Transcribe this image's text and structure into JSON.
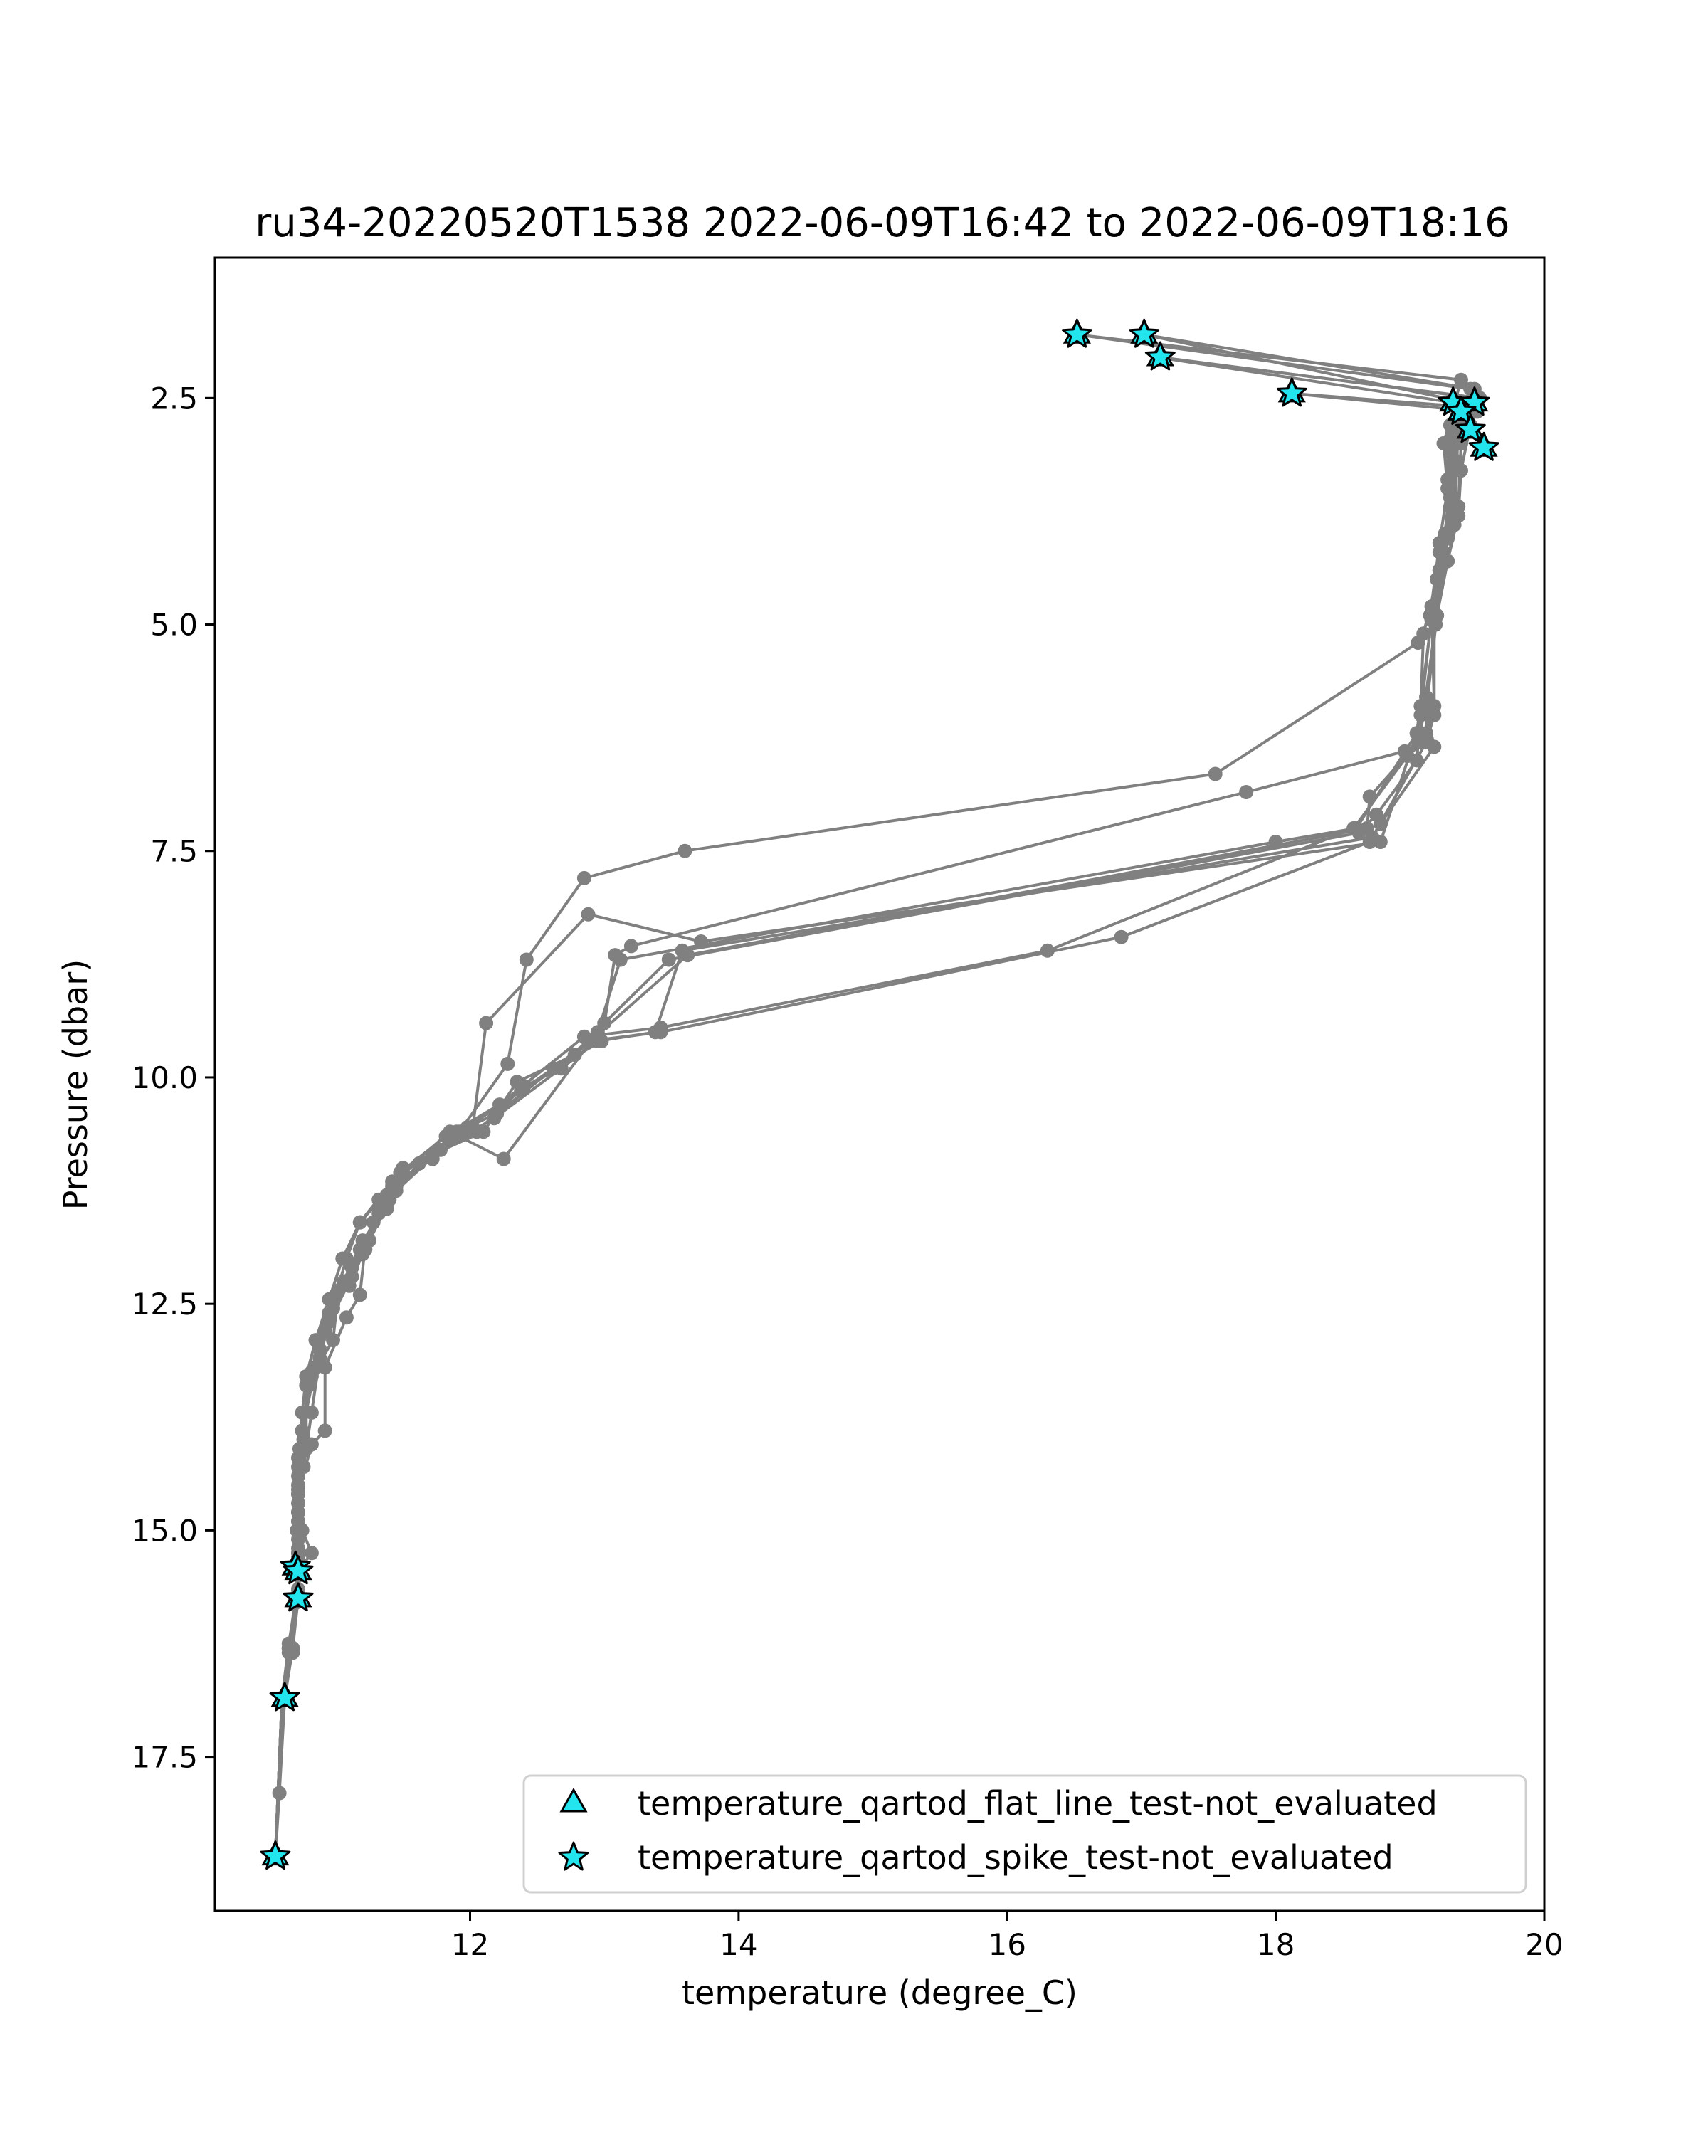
{
  "chart_data": {
    "type": "line",
    "title": "ru34-20220520T1538 2022-06-09T16:42 to 2022-06-09T18:16",
    "xlabel": "temperature (degree_C)",
    "ylabel": "Pressure (dbar)",
    "xlim": [
      10.1,
      20.0
    ],
    "ylim": [
      19.2,
      0.95
    ],
    "y_inverted": true,
    "x_ticks": [
      12,
      14,
      16,
      18,
      20
    ],
    "x_tick_labels": [
      "12",
      "14",
      "16",
      "18",
      "20"
    ],
    "y_ticks": [
      2.5,
      5.0,
      7.5,
      10.0,
      12.5,
      15.0,
      17.5
    ],
    "y_tick_labels": [
      "2.5",
      "5.0",
      "7.5",
      "10.0",
      "12.5",
      "15.0",
      "17.5"
    ],
    "grid": false,
    "line_color": "#808080",
    "marker_color": "#808080",
    "flag_color": "#22e5ee",
    "flag_edge_color": "#000000",
    "series": [
      {
        "points": [
          [
            16.52,
            1.8
          ],
          [
            19.38,
            2.3
          ],
          [
            19.25,
            3.0
          ],
          [
            19.28,
            3.5
          ],
          [
            19.22,
            4.1
          ],
          [
            19.15,
            4.9
          ],
          [
            19.06,
            5.2
          ],
          [
            17.55,
            6.65
          ],
          [
            13.6,
            7.5
          ],
          [
            12.85,
            7.8
          ],
          [
            12.42,
            8.7
          ],
          [
            12.28,
            9.85
          ],
          [
            11.92,
            10.6
          ],
          [
            11.42,
            11.15
          ],
          [
            11.18,
            11.6
          ],
          [
            11.08,
            12.0
          ],
          [
            10.98,
            12.5
          ],
          [
            10.82,
            13.3
          ],
          [
            10.73,
            14.1
          ],
          [
            10.72,
            14.55
          ],
          [
            10.72,
            14.9
          ],
          [
            10.7,
            15.4
          ],
          [
            10.72,
            15.75
          ],
          [
            10.68,
            16.3
          ],
          [
            10.62,
            16.85
          ],
          [
            10.58,
            17.9
          ],
          [
            10.55,
            18.6
          ]
        ]
      },
      {
        "points": [
          [
            17.02,
            1.8
          ],
          [
            19.48,
            2.4
          ],
          [
            19.36,
            2.6
          ],
          [
            19.35,
            3.2
          ],
          [
            19.33,
            3.9
          ],
          [
            19.25,
            4.2
          ],
          [
            19.19,
            5.0
          ],
          [
            19.07,
            6.3
          ],
          [
            18.96,
            6.4
          ],
          [
            17.78,
            6.85
          ],
          [
            13.2,
            8.55
          ],
          [
            13.08,
            8.65
          ],
          [
            12.98,
            9.6
          ],
          [
            12.62,
            9.9
          ],
          [
            12.38,
            10.15
          ],
          [
            11.98,
            10.55
          ],
          [
            11.45,
            11.2
          ],
          [
            11.32,
            11.5
          ],
          [
            11.18,
            11.9
          ],
          [
            11.02,
            12.35
          ],
          [
            10.98,
            12.9
          ],
          [
            10.78,
            13.4
          ],
          [
            10.78,
            14.1
          ],
          [
            10.72,
            14.5
          ],
          [
            10.71,
            15.0
          ],
          [
            10.72,
            15.45
          ],
          [
            10.7,
            15.8
          ],
          [
            10.65,
            16.25
          ],
          [
            10.6,
            16.85
          ],
          [
            10.55,
            18.6
          ]
        ]
      },
      {
        "points": [
          [
            17.14,
            2.05
          ],
          [
            19.5,
            2.5
          ],
          [
            19.42,
            2.6
          ],
          [
            19.38,
            3.0
          ],
          [
            19.36,
            3.7
          ],
          [
            19.28,
            4.3
          ],
          [
            19.2,
            4.9
          ],
          [
            19.12,
            5.8
          ],
          [
            19.12,
            6.2
          ],
          [
            18.7,
            6.9
          ],
          [
            18.68,
            7.25
          ],
          [
            13.62,
            8.65
          ],
          [
            12.78,
            9.75
          ],
          [
            12.35,
            10.05
          ],
          [
            12.1,
            10.6
          ],
          [
            11.72,
            10.85
          ],
          [
            11.38,
            11.3
          ],
          [
            11.25,
            11.8
          ],
          [
            11.12,
            12.2
          ],
          [
            10.95,
            12.7
          ],
          [
            10.88,
            13.1
          ],
          [
            10.82,
            13.7
          ],
          [
            10.76,
            14.3
          ],
          [
            10.72,
            14.8
          ],
          [
            10.72,
            15.2
          ],
          [
            10.72,
            15.7
          ],
          [
            10.65,
            16.35
          ],
          [
            10.6,
            16.85
          ],
          [
            10.55,
            18.6
          ]
        ]
      },
      {
        "points": [
          [
            18.12,
            2.45
          ],
          [
            19.45,
            2.6
          ],
          [
            19.3,
            2.8
          ],
          [
            19.28,
            3.4
          ],
          [
            19.28,
            4.0
          ],
          [
            19.22,
            4.4
          ],
          [
            19.16,
            4.8
          ],
          [
            19.18,
            5.9
          ],
          [
            19.1,
            6.3
          ],
          [
            18.98,
            6.45
          ],
          [
            18.58,
            7.25
          ],
          [
            16.3,
            8.6
          ],
          [
            13.42,
            9.45
          ],
          [
            12.85,
            9.55
          ],
          [
            12.22,
            10.3
          ],
          [
            11.82,
            10.65
          ],
          [
            11.48,
            11.05
          ],
          [
            11.38,
            11.45
          ],
          [
            11.2,
            11.8
          ],
          [
            11.06,
            12.25
          ],
          [
            10.95,
            12.6
          ],
          [
            10.85,
            13.2
          ],
          [
            10.75,
            13.9
          ],
          [
            10.75,
            14.3
          ],
          [
            10.72,
            14.8
          ],
          [
            10.72,
            15.3
          ],
          [
            10.72,
            15.65
          ],
          [
            10.66,
            16.3
          ],
          [
            10.6,
            16.85
          ],
          [
            10.55,
            18.6
          ]
        ]
      },
      {
        "points": [
          [
            17.12,
            2.05
          ],
          [
            19.32,
            2.55
          ],
          [
            19.38,
            2.7
          ],
          [
            19.3,
            3.1
          ],
          [
            19.3,
            3.6
          ],
          [
            19.24,
            4.2
          ],
          [
            19.16,
            4.9
          ],
          [
            19.08,
            6.0
          ],
          [
            19.05,
            6.5
          ],
          [
            18.75,
            7.1
          ],
          [
            18.62,
            7.3
          ],
          [
            13.48,
            8.7
          ],
          [
            13.0,
            9.4
          ],
          [
            12.68,
            9.9
          ],
          [
            12.4,
            10.1
          ],
          [
            12.05,
            10.6
          ],
          [
            11.5,
            11.0
          ],
          [
            11.4,
            11.35
          ],
          [
            11.22,
            11.9
          ],
          [
            11.0,
            12.4
          ],
          [
            10.92,
            12.8
          ],
          [
            10.8,
            13.3
          ],
          [
            10.74,
            14.15
          ],
          [
            10.72,
            14.6
          ],
          [
            10.72,
            15.1
          ],
          [
            10.72,
            15.5
          ],
          [
            10.7,
            15.75
          ],
          [
            10.65,
            16.3
          ],
          [
            10.6,
            16.85
          ],
          [
            10.55,
            18.6
          ]
        ]
      },
      {
        "points": [
          [
            17.02,
            1.8
          ],
          [
            19.42,
            2.55
          ],
          [
            19.36,
            2.7
          ],
          [
            19.32,
            3.2
          ],
          [
            19.3,
            3.7
          ],
          [
            19.22,
            4.2
          ],
          [
            19.18,
            4.95
          ],
          [
            19.18,
            6.0
          ],
          [
            19.12,
            6.3
          ],
          [
            18.7,
            7.4
          ],
          [
            16.85,
            8.45
          ],
          [
            13.42,
            9.5
          ],
          [
            12.88,
            9.6
          ],
          [
            12.2,
            10.4
          ],
          [
            11.9,
            10.6
          ],
          [
            11.72,
            10.9
          ],
          [
            11.42,
            11.2
          ],
          [
            11.18,
            11.6
          ],
          [
            11.05,
            12.0
          ],
          [
            10.95,
            12.45
          ],
          [
            10.85,
            12.9
          ],
          [
            10.78,
            13.3
          ],
          [
            10.75,
            13.7
          ],
          [
            10.72,
            14.2
          ],
          [
            10.72,
            14.7
          ],
          [
            10.72,
            15.25
          ],
          [
            10.72,
            15.75
          ],
          [
            10.65,
            16.3
          ],
          [
            10.6,
            16.85
          ],
          [
            10.55,
            18.6
          ]
        ]
      },
      {
        "points": [
          [
            16.52,
            1.8
          ],
          [
            19.45,
            2.4
          ],
          [
            19.32,
            2.9
          ],
          [
            19.3,
            3.4
          ],
          [
            19.26,
            4.0
          ],
          [
            19.2,
            4.5
          ],
          [
            19.1,
            5.1
          ],
          [
            19.08,
            5.9
          ],
          [
            19.05,
            6.2
          ],
          [
            18.6,
            7.25
          ],
          [
            18.0,
            7.4
          ],
          [
            13.12,
            8.7
          ],
          [
            12.95,
            9.5
          ],
          [
            12.25,
            10.9
          ],
          [
            11.85,
            10.6
          ],
          [
            11.5,
            11.05
          ],
          [
            11.32,
            11.35
          ],
          [
            11.22,
            11.85
          ],
          [
            11.18,
            12.4
          ],
          [
            11.08,
            12.65
          ],
          [
            10.92,
            13.2
          ],
          [
            10.92,
            13.9
          ],
          [
            10.82,
            14.05
          ],
          [
            10.72,
            14.6
          ],
          [
            10.75,
            15.0
          ],
          [
            10.82,
            15.25
          ],
          [
            10.72,
            15.45
          ],
          [
            10.7,
            15.75
          ],
          [
            10.68,
            16.35
          ],
          [
            10.6,
            16.85
          ],
          [
            10.55,
            18.6
          ]
        ]
      },
      {
        "points": [
          [
            17.12,
            2.05
          ],
          [
            19.52,
            2.5
          ],
          [
            19.42,
            2.55
          ],
          [
            19.35,
            3.0
          ],
          [
            19.32,
            3.6
          ],
          [
            19.28,
            4.05
          ],
          [
            19.22,
            4.4
          ],
          [
            19.16,
            4.95
          ],
          [
            19.05,
            6.2
          ],
          [
            18.78,
            7.4
          ],
          [
            13.72,
            8.5
          ],
          [
            12.88,
            8.2
          ],
          [
            12.12,
            9.4
          ],
          [
            12.02,
            10.55
          ],
          [
            11.62,
            10.95
          ],
          [
            11.32,
            11.45
          ],
          [
            11.2,
            11.95
          ],
          [
            11.1,
            12.3
          ],
          [
            10.98,
            12.5
          ],
          [
            10.82,
            13.25
          ],
          [
            10.75,
            13.9
          ],
          [
            10.72,
            14.3
          ],
          [
            10.72,
            14.8
          ],
          [
            10.72,
            15.25
          ],
          [
            10.72,
            15.7
          ],
          [
            10.65,
            16.3
          ],
          [
            10.6,
            16.85
          ],
          [
            10.55,
            18.6
          ]
        ]
      },
      {
        "points": [
          [
            18.12,
            2.45
          ],
          [
            19.5,
            2.65
          ],
          [
            19.45,
            2.8
          ],
          [
            19.38,
            3.3
          ],
          [
            19.36,
            3.8
          ],
          [
            19.28,
            4.3
          ],
          [
            19.2,
            4.9
          ],
          [
            19.12,
            5.95
          ],
          [
            19.18,
            6.35
          ],
          [
            18.78,
            7.2
          ],
          [
            18.72,
            7.35
          ],
          [
            13.58,
            8.6
          ],
          [
            13.38,
            9.5
          ],
          [
            12.95,
            9.6
          ],
          [
            12.18,
            10.45
          ],
          [
            11.78,
            10.8
          ],
          [
            11.45,
            11.25
          ],
          [
            11.28,
            11.6
          ],
          [
            11.12,
            12.1
          ],
          [
            10.98,
            12.55
          ],
          [
            10.88,
            13.0
          ],
          [
            10.8,
            13.4
          ],
          [
            10.76,
            14.0
          ],
          [
            10.72,
            14.4
          ],
          [
            10.72,
            14.9
          ],
          [
            10.72,
            15.3
          ],
          [
            10.72,
            15.7
          ],
          [
            10.66,
            16.3
          ],
          [
            10.6,
            16.85
          ],
          [
            10.55,
            18.6
          ]
        ]
      }
    ],
    "flagged_points": [
      [
        16.52,
        1.8
      ],
      [
        17.02,
        1.8
      ],
      [
        17.14,
        2.05
      ],
      [
        18.12,
        2.45
      ],
      [
        19.32,
        2.55
      ],
      [
        19.48,
        2.55
      ],
      [
        19.38,
        2.65
      ],
      [
        19.45,
        2.85
      ],
      [
        19.55,
        3.05
      ],
      [
        10.7,
        15.4
      ],
      [
        10.72,
        15.45
      ],
      [
        10.72,
        15.75
      ],
      [
        10.62,
        16.85
      ],
      [
        10.55,
        18.6
      ]
    ],
    "legend": {
      "position": "lower-right",
      "entries": [
        {
          "marker": "triangle",
          "label": "temperature_qartod_flat_line_test-not_evaluated"
        },
        {
          "marker": "star",
          "label": "temperature_qartod_spike_test-not_evaluated"
        }
      ]
    }
  }
}
